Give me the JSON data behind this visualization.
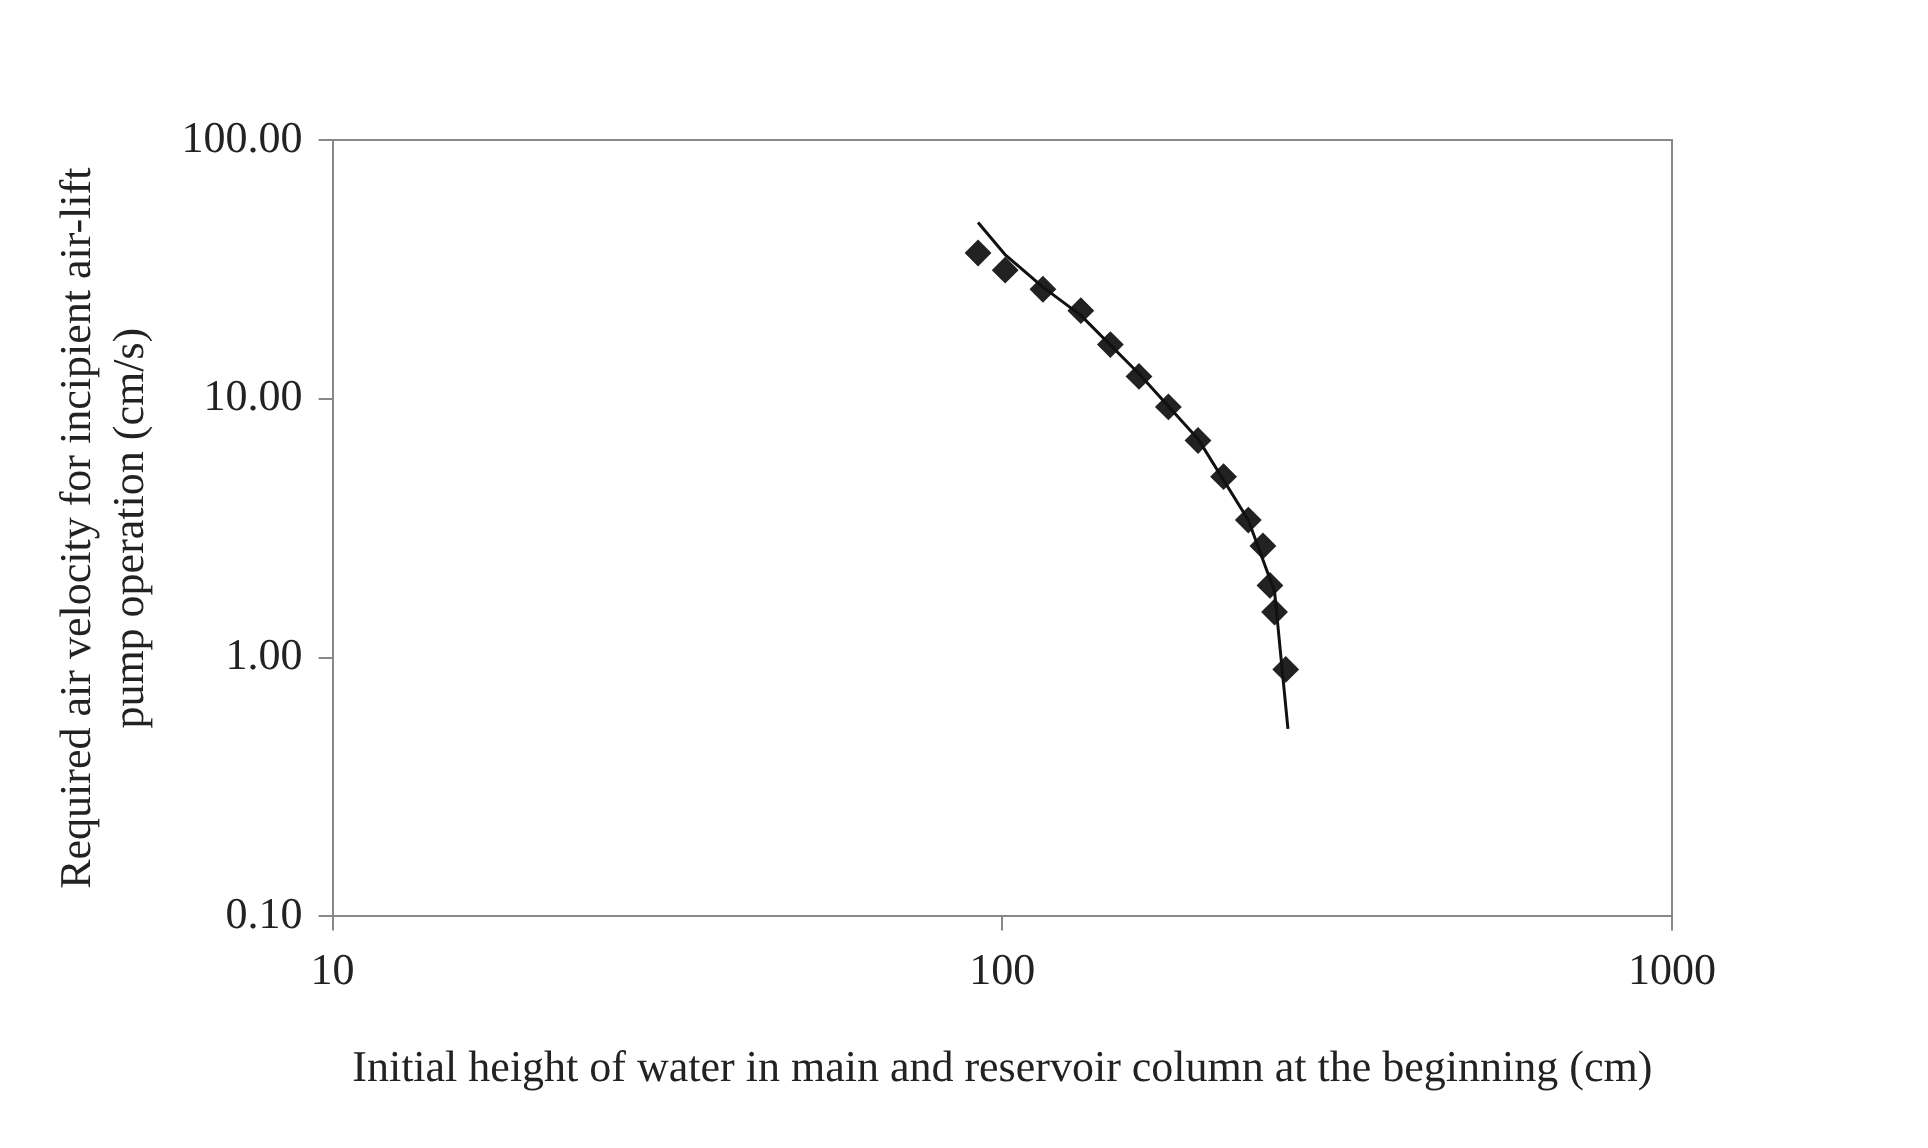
{
  "chart_data": {
    "type": "scatter",
    "xlabel": "Initial height of water in main and reservoir column at the beginning (cm)",
    "ylabel": "Required air velocity for incipient air-lift\npump operation (cm/s)",
    "log": "xy",
    "xlim": [
      10,
      1000
    ],
    "xticks": [
      10,
      100,
      1000
    ],
    "ylim": [
      0.1,
      100
    ],
    "yticks": [
      {
        "value": 0.1,
        "label": "0.10"
      },
      {
        "value": 1,
        "label": "1.00"
      },
      {
        "value": 10,
        "label": "10.00"
      },
      {
        "value": 100,
        "label": "100.00"
      }
    ],
    "grid": false,
    "legend": false,
    "marker": "diamond",
    "series": [
      {
        "color": "#222222",
        "x": [
          92,
          101,
          115,
          131,
          145,
          160,
          177,
          196,
          214,
          233,
          245,
          251,
          255,
          265
        ],
        "values": [
          36.6,
          31.4,
          26.5,
          21.9,
          16.2,
          12.2,
          9.3,
          6.9,
          5.0,
          3.4,
          2.7,
          1.9,
          1.5,
          0.9
        ]
      },
      {
        "type": "line",
        "color": "#111111",
        "marker": "none",
        "x": [
          92,
          101,
          115,
          131,
          160,
          196,
          233,
          255,
          267
        ],
        "values": [
          48,
          36,
          27,
          21,
          12.5,
          7,
          3.4,
          1.8,
          0.53
        ]
      }
    ]
  }
}
